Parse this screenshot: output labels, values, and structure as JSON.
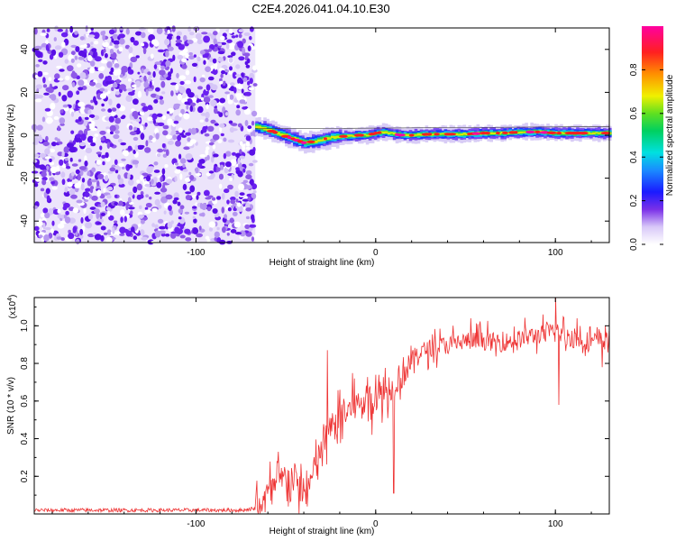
{
  "title": "C2E4.2026.041.04.10.E30",
  "chart_data": [
    {
      "type": "heatmap",
      "xlabel": "Height of straight line (km)",
      "ylabel": "Frequency (Hz)",
      "xlim": [
        -190,
        130
      ],
      "ylim": [
        -50,
        50
      ],
      "x_ticks": [
        -100,
        0,
        100
      ],
      "x_tick_labels": [
        "-100",
        "0",
        "100"
      ],
      "y_ticks": [
        -40,
        -20,
        0,
        20,
        40
      ],
      "y_tick_labels": [
        "-40",
        "-20",
        "0",
        "20",
        "40"
      ],
      "noise_region_x": [
        -190,
        -67
      ],
      "ridge_center": [
        [
          -67,
          4.0
        ],
        [
          -60,
          2.5
        ],
        [
          -55,
          1.0
        ],
        [
          -50,
          -0.5
        ],
        [
          -45,
          -2.0
        ],
        [
          -40,
          -3.5
        ],
        [
          -35,
          -3.0
        ],
        [
          -30,
          -2.0
        ],
        [
          -25,
          -1.0
        ],
        [
          -20,
          -0.5
        ],
        [
          -15,
          -0.5
        ],
        [
          -10,
          0.0
        ],
        [
          -5,
          0.0
        ],
        [
          0,
          1.0
        ],
        [
          5,
          1.5
        ],
        [
          10,
          0.5
        ],
        [
          15,
          0.0
        ],
        [
          20,
          0.0
        ],
        [
          30,
          0.5
        ],
        [
          40,
          0.5
        ],
        [
          50,
          0.5
        ],
        [
          60,
          1.0
        ],
        [
          70,
          1.0
        ],
        [
          80,
          1.5
        ],
        [
          90,
          1.5
        ],
        [
          100,
          1.0
        ],
        [
          110,
          1.0
        ],
        [
          120,
          1.0
        ],
        [
          130,
          1.0
        ]
      ],
      "colorbar": {
        "label": "Normalized spectral amplitude",
        "range": [
          0,
          1
        ],
        "ticks": [
          0.0,
          0.2,
          0.4,
          0.6,
          0.8
        ],
        "tick_labels": [
          "0.0",
          "0.2",
          "0.4",
          "0.6",
          "0.8"
        ]
      }
    },
    {
      "type": "line",
      "xlabel": "Height of straight line (km)",
      "ylabel": "SNR (10 * v/v)",
      "scale_note": "(x10",
      "scale_exponent": "4",
      "scale_close": ")",
      "xlim": [
        -190,
        130
      ],
      "ylim": [
        0,
        1.15
      ],
      "x_ticks": [
        -100,
        0,
        100
      ],
      "x_tick_labels": [
        "-100",
        "0",
        "100"
      ],
      "y_ticks": [
        0.2,
        0.4,
        0.6,
        0.8,
        1.0
      ],
      "y_tick_labels": [
        "0.2",
        "0.4",
        "0.6",
        "0.8",
        "1.0"
      ],
      "color": "#ee3333",
      "series": [
        {
          "name": "SNR",
          "x": [
            -190,
            -170,
            -150,
            -130,
            -110,
            -90,
            -75,
            -67,
            -60,
            -55,
            -50,
            -45,
            -40,
            -35,
            -30,
            -25,
            -20,
            -15,
            -10,
            -5,
            0,
            5,
            10,
            15,
            20,
            25,
            30,
            40,
            50,
            60,
            70,
            80,
            90,
            100,
            110,
            120,
            130
          ],
          "y": [
            0.02,
            0.02,
            0.02,
            0.02,
            0.02,
            0.02,
            0.02,
            0.03,
            0.1,
            0.15,
            0.2,
            0.18,
            0.1,
            0.2,
            0.35,
            0.45,
            0.5,
            0.55,
            0.58,
            0.6,
            0.62,
            0.65,
            0.7,
            0.75,
            0.82,
            0.86,
            0.88,
            0.9,
            0.92,
            0.92,
            0.91,
            0.93,
            0.95,
            0.97,
            0.93,
            0.92,
            0.92
          ]
        }
      ],
      "spikes": [
        [
          -27,
          0.87
        ],
        [
          -20,
          0.66
        ],
        [
          -12,
          0.72
        ],
        [
          -5,
          0.64
        ],
        [
          0,
          0.74
        ],
        [
          53,
          1.04
        ],
        [
          100,
          1.15
        ],
        [
          112,
          1.04
        ]
      ],
      "dips": [
        [
          -38,
          0.04
        ],
        [
          10,
          0.11
        ],
        [
          102,
          0.58
        ],
        [
          126,
          0.78
        ]
      ]
    }
  ]
}
